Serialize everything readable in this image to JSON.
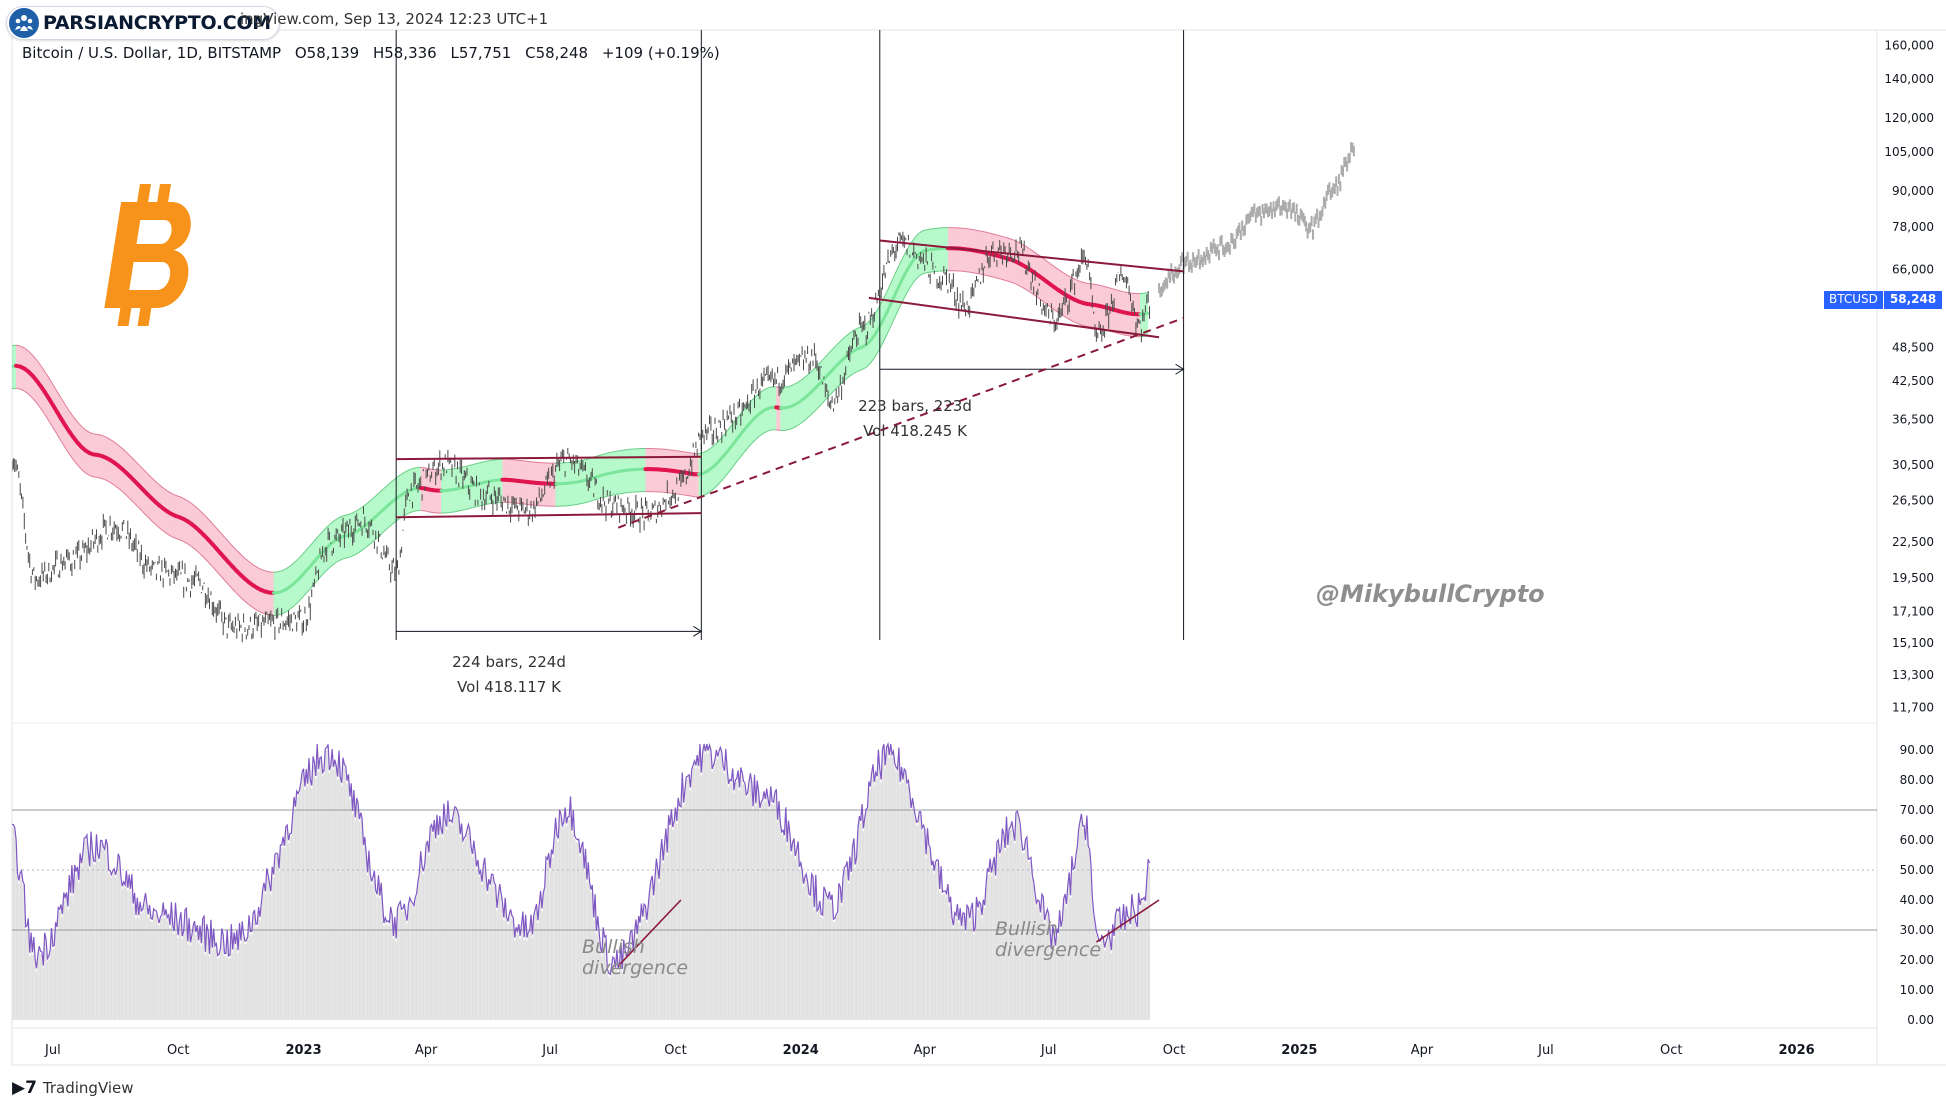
{
  "watermark": {
    "text": "PARSIANCRYPTO.COM",
    "icon": "people-icon"
  },
  "header": {
    "source_line": "ingView.com, Sep 13, 2024 12:23 UTC+1",
    "symbol": "Bitcoin / U.S. Dollar, 1D, BITSTAMP",
    "open": "O58,139",
    "high": "H58,336",
    "low": "L57,751",
    "close": "C58,248",
    "change": "+109 (+0.19%)"
  },
  "logo": {
    "icon": "bitcoin-icon",
    "color": "#f7931a"
  },
  "handle": "@MikybullCrypto",
  "price_tag": {
    "symbol": "BTCUSD",
    "value": "58,248",
    "color": "#2962ff"
  },
  "measures": [
    {
      "bars": "224 bars, 224d",
      "vol": "Vol 418.117 K"
    },
    {
      "bars": "223 bars, 223d",
      "vol": "Vol 418.245 K"
    }
  ],
  "divergence_labels": [
    {
      "line1": "Bullish",
      "line2": "divergence"
    },
    {
      "line1": "Bullish",
      "line2": "divergence"
    }
  ],
  "footer": {
    "brand": "TradingView"
  },
  "colors": {
    "band_bull": "#5ef28a",
    "band_bear": "#f06a8a",
    "line_bear": "#e0144f",
    "rsi": "#7e57c2",
    "channel": "#8b1a3a",
    "projection": "#9e9e9e"
  },
  "chart_data": {
    "type": "line",
    "price_axis": {
      "scale": "log",
      "ticks": [
        "160,000",
        "140,000",
        "120,000",
        "105,000",
        "90,000",
        "78,000",
        "66,000",
        "48,500",
        "42,500",
        "36,500",
        "30,500",
        "26,500",
        "22,500",
        "19,500",
        "17,100",
        "15,100",
        "13,300",
        "11,700"
      ]
    },
    "rsi_axis": {
      "ticks": [
        "90.00",
        "80.00",
        "70.00",
        "60.00",
        "50.00",
        "40.00",
        "30.00",
        "20.00",
        "10.00",
        "0.00"
      ],
      "bands": [
        70,
        30
      ],
      "midline": 50
    },
    "time_axis": {
      "ticks": [
        "Jul",
        "Oct",
        "2023",
        "Apr",
        "Jul",
        "Oct",
        "2024",
        "Apr",
        "Jul",
        "Oct",
        "2025",
        "Apr",
        "Jul",
        "Oct",
        "2026"
      ]
    },
    "series": [
      {
        "values": [
          [
            "2022-06-01",
            31500
          ],
          [
            "2022-06-18",
            19500
          ],
          [
            "2022-07-15",
            21000
          ],
          [
            "2022-08-15",
            24000
          ],
          [
            "2022-09-15",
            20000
          ],
          [
            "2022-10-15",
            19200
          ],
          [
            "2022-11-09",
            16000
          ],
          [
            "2022-12-31",
            16500
          ],
          [
            "2023-01-20",
            22500
          ],
          [
            "2023-02-15",
            24500
          ],
          [
            "2023-03-10",
            20000
          ],
          [
            "2023-03-20",
            27500
          ],
          [
            "2023-04-14",
            30500
          ],
          [
            "2023-05-15",
            27000
          ],
          [
            "2023-06-15",
            25500
          ],
          [
            "2023-07-13",
            31000
          ],
          [
            "2023-08-17",
            26000
          ],
          [
            "2023-09-11",
            25000
          ],
          [
            "2023-10-01",
            27500
          ],
          [
            "2023-10-24",
            34500
          ],
          [
            "2023-11-15",
            37000
          ],
          [
            "2023-12-05",
            42000
          ],
          [
            "2024-01-11",
            46500
          ],
          [
            "2024-01-23",
            39000
          ],
          [
            "2024-02-15",
            52000
          ],
          [
            "2024-03-14",
            73000
          ],
          [
            "2024-04-15",
            64000
          ],
          [
            "2024-05-01",
            57000
          ],
          [
            "2024-05-21",
            71000
          ],
          [
            "2024-06-07",
            71500
          ],
          [
            "2024-07-05",
            54000
          ],
          [
            "2024-07-29",
            69000
          ],
          [
            "2024-08-05",
            50000
          ],
          [
            "2024-08-25",
            64500
          ],
          [
            "2024-09-06",
            53000
          ],
          [
            "2024-09-13",
            58248
          ]
        ]
      },
      {
        "values": [
          [
            "2024-09-20",
            62000
          ],
          [
            "2024-10-10",
            68000
          ],
          [
            "2024-11-05",
            72000
          ],
          [
            "2024-12-01",
            82000
          ],
          [
            "2024-12-20",
            85000
          ],
          [
            "2025-01-10",
            78000
          ],
          [
            "2025-01-25",
            90000
          ],
          [
            "2025-02-10",
            105000
          ]
        ]
      },
      {
        "values": [
          [
            "2022-06-01",
            45000
          ],
          [
            "2022-08-01",
            30000
          ],
          [
            "2022-10-01",
            25500
          ],
          [
            "2022-12-15",
            19000
          ],
          [
            "2023-02-01",
            22000
          ],
          [
            "2023-04-01",
            27000
          ],
          [
            "2023-06-01",
            30500
          ],
          [
            "2023-08-01",
            29000
          ],
          [
            "2023-10-15",
            28000
          ],
          [
            "2023-12-15",
            40000
          ],
          [
            "2024-02-15",
            50000
          ],
          [
            "2024-04-01",
            68000
          ],
          [
            "2024-06-01",
            67000
          ],
          [
            "2024-08-01",
            61000
          ],
          [
            "2024-09-13",
            57500
          ]
        ]
      },
      {
        "values": [
          [
            "2022-06-01",
            60
          ],
          [
            "2022-06-18",
            22
          ],
          [
            "2022-08-01",
            58
          ],
          [
            "2022-09-15",
            35
          ],
          [
            "2022-11-09",
            26
          ],
          [
            "2023-01-20",
            89
          ],
          [
            "2023-03-10",
            33
          ],
          [
            "2023-04-14",
            68
          ],
          [
            "2023-06-15",
            30
          ],
          [
            "2023-07-13",
            71
          ],
          [
            "2023-08-17",
            19
          ],
          [
            "2023-10-24",
            89
          ],
          [
            "2023-12-05",
            75
          ],
          [
            "2024-01-23",
            38
          ],
          [
            "2024-03-05",
            88
          ],
          [
            "2024-05-01",
            33
          ],
          [
            "2024-06-07",
            65
          ],
          [
            "2024-07-05",
            28
          ],
          [
            "2024-07-29",
            66
          ],
          [
            "2024-08-05",
            26
          ],
          [
            "2024-09-06",
            37
          ],
          [
            "2024-09-13",
            50
          ]
        ]
      }
    ],
    "annotations": [
      "224 bars, 224d",
      "Vol 418.117 K",
      "223 bars, 223d",
      "Vol 418.245 K",
      "Bullish divergence",
      "Bullish divergence"
    ]
  }
}
